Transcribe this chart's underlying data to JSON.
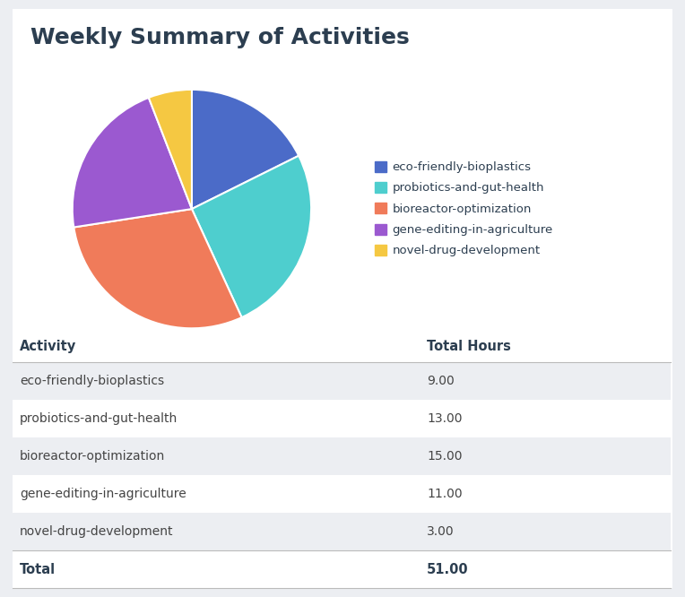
{
  "title": "Weekly Summary of Activities",
  "activities": [
    "eco-friendly-bioplastics",
    "probiotics-and-gut-health",
    "bioreactor-optimization",
    "gene-editing-in-agriculture",
    "novel-drug-development"
  ],
  "hours": [
    9.0,
    13.0,
    15.0,
    11.0,
    3.0
  ],
  "total": 51.0,
  "colors": [
    "#4B6BC8",
    "#4ECECE",
    "#F07B5A",
    "#9B59D0",
    "#F5C842"
  ],
  "bg_color": "#ECEEF2",
  "card_color": "#FFFFFF",
  "title_color": "#2C3E50",
  "table_alt_color": "#ECEEF2",
  "table_white_color": "#FFFFFF",
  "col1_header": "Activity",
  "col2_header": "Total Hours",
  "title_fontsize": 18,
  "legend_fontsize": 9.5,
  "table_fontsize": 10,
  "table_header_fontsize": 10.5
}
